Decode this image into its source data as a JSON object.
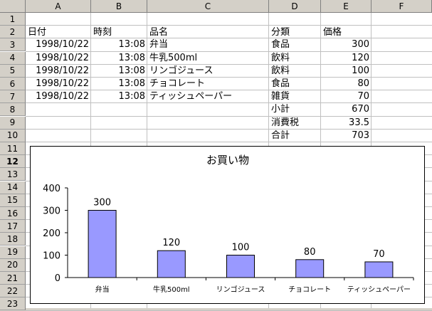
{
  "columns": [
    "A",
    "B",
    "C",
    "D",
    "E",
    "F"
  ],
  "rows": [
    "1",
    "2",
    "3",
    "4",
    "5",
    "6",
    "7",
    "8",
    "9",
    "10",
    "11",
    "12",
    "13",
    "14",
    "15",
    "16",
    "17",
    "18",
    "19",
    "20",
    "21",
    "22",
    "23"
  ],
  "headers": {
    "date": "日付",
    "time": "時刻",
    "item": "品名",
    "category": "分類",
    "price": "価格"
  },
  "table": [
    {
      "date": "1998/10/22",
      "time": "13:08",
      "item": "弁当",
      "category": "食品",
      "price": "300"
    },
    {
      "date": "1998/10/22",
      "time": "13:08",
      "item": "牛乳500ml",
      "category": "飲料",
      "price": "120"
    },
    {
      "date": "1998/10/22",
      "time": "13:08",
      "item": "リンゴジュース",
      "category": "飲料",
      "price": "100"
    },
    {
      "date": "1998/10/22",
      "time": "13:08",
      "item": "チョコレート",
      "category": "食品",
      "price": "80"
    },
    {
      "date": "1998/10/22",
      "time": "13:08",
      "item": "ティッシュペーパー",
      "category": "雑貨",
      "price": "70"
    }
  ],
  "summary": [
    {
      "label": "小計",
      "value": "670"
    },
    {
      "label": "消費税",
      "value": "33.5"
    },
    {
      "label": "合計",
      "value": "703"
    }
  ],
  "chart_data": {
    "type": "bar",
    "title": "お買い物",
    "categories": [
      "弁当",
      "牛乳500ml",
      "リンゴジュース",
      "チョコレート",
      "ティッシュペーパー"
    ],
    "values": [
      300,
      120,
      100,
      80,
      70
    ],
    "ylim": [
      0,
      400
    ],
    "yticks": [
      "0",
      "100",
      "200",
      "300",
      "400"
    ],
    "bar_color": "#9999ff",
    "grid": false,
    "legend": false
  }
}
